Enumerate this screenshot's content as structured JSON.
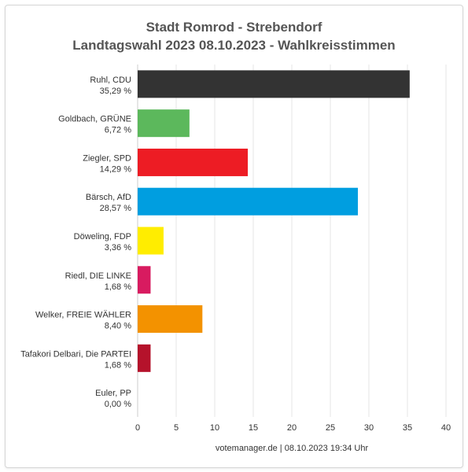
{
  "chart_data": {
    "type": "bar",
    "orientation": "horizontal",
    "title": "Stadt Romrod - Strebendorf",
    "subtitle": "Landtagswahl 2023 08.10.2023  - Wahlkreisstimmen",
    "categories": [
      "Ruhl, CDU",
      "Goldbach, GRÜNE",
      "Ziegler, SPD",
      "Bärsch, AfD",
      "Döweling, FDP",
      "Riedl, DIE LINKE",
      "Welker, FREIE WÄHLER",
      "Tafakori Delbari, Die PARTEI",
      "Euler, PP"
    ],
    "percent_labels": [
      "35,29 %",
      "6,72 %",
      "14,29 %",
      "28,57 %",
      "3,36 %",
      "1,68 %",
      "8,40 %",
      "1,68 %",
      "0,00 %"
    ],
    "values": [
      35.29,
      6.72,
      14.29,
      28.57,
      3.36,
      1.68,
      8.4,
      1.68,
      0.0
    ],
    "colors": [
      "#333333",
      "#5cb85c",
      "#ed1c24",
      "#009ee0",
      "#ffed00",
      "#d81b60",
      "#f39200",
      "#b5122b",
      "#999999"
    ],
    "xlim": [
      0,
      40
    ],
    "xticks": [
      0,
      5,
      10,
      15,
      20,
      25,
      30,
      35,
      40
    ],
    "grid": true
  },
  "footer": "votemanager.de | 08.10.2023 19:34 Uhr"
}
